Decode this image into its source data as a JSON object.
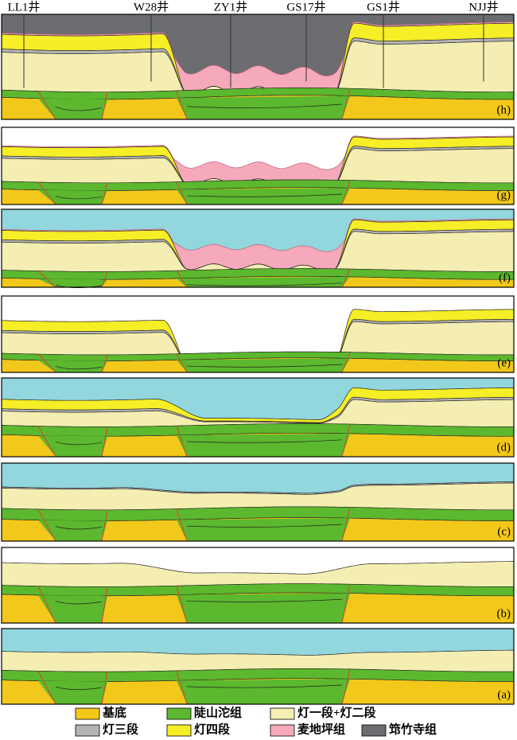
{
  "wells": [
    "LL1井",
    "W28井",
    "ZY1井",
    "GS17井",
    "GS1井",
    "NJJ井"
  ],
  "panels": [
    "(h)",
    "(g)",
    "(f)",
    "(e)",
    "(d)",
    "(c)",
    "(b)",
    "(a)"
  ],
  "legend": [
    "基底",
    "陡山沱组",
    "灯一段+灯二段",
    "灯三段",
    "灯四段",
    "麦地坪组",
    "筇竹寺组"
  ]
}
